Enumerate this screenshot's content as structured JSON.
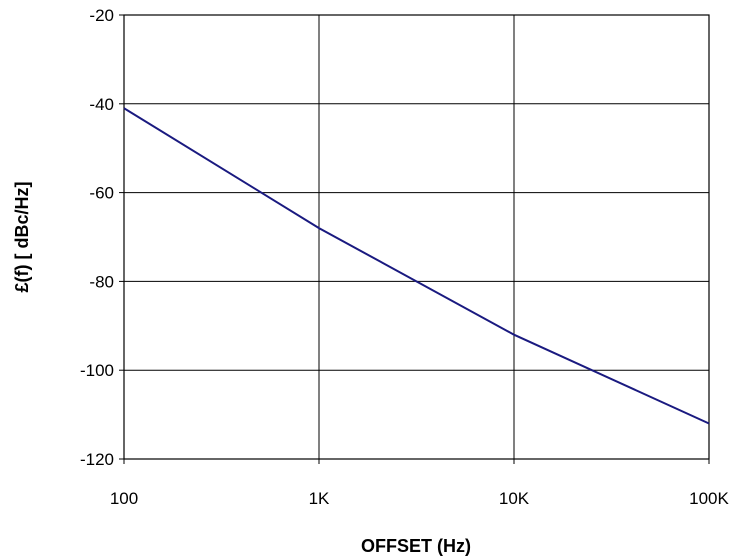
{
  "chart_data": {
    "type": "line",
    "title": "",
    "xlabel": "OFFSET (Hz)",
    "ylabel": "£(f) [ dBc/Hz]",
    "x_scale": "log",
    "xlim": [
      100,
      100000
    ],
    "ylim": [
      -120,
      -20
    ],
    "x_ticks": [
      {
        "value": 100,
        "label": "100"
      },
      {
        "value": 1000,
        "label": "1K"
      },
      {
        "value": 10000,
        "label": "10K"
      },
      {
        "value": 100000,
        "label": "100K"
      }
    ],
    "y_ticks": [
      {
        "value": -20,
        "label": "-20"
      },
      {
        "value": -40,
        "label": "-40"
      },
      {
        "value": -60,
        "label": "-60"
      },
      {
        "value": -80,
        "label": "-80"
      },
      {
        "value": -100,
        "label": "-100"
      },
      {
        "value": -120,
        "label": "-120"
      }
    ],
    "grid": true,
    "series": [
      {
        "color": "#1a1a80",
        "x": [
          100,
          1000,
          10000,
          100000
        ],
        "y": [
          -41,
          -68,
          -92,
          -112
        ]
      }
    ]
  }
}
